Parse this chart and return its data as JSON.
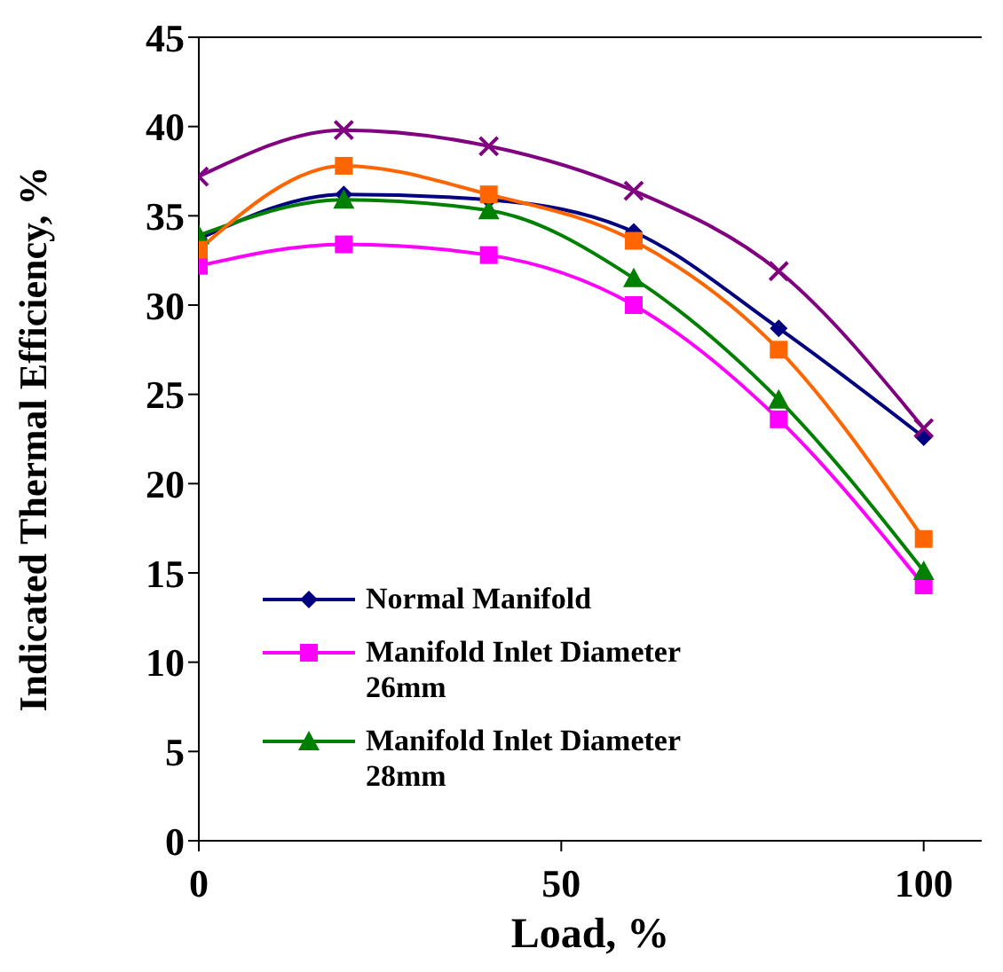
{
  "chart_data": {
    "type": "line",
    "xlabel": "Load, %",
    "ylabel": "Indicated Thermal Efficiency, %",
    "x": [
      0,
      20,
      40,
      60,
      80,
      100
    ],
    "xlim": [
      0,
      108
    ],
    "xticks": [
      0,
      50,
      100
    ],
    "ylim": [
      0,
      45
    ],
    "yticks": [
      0,
      5,
      10,
      15,
      20,
      25,
      30,
      35,
      40,
      45
    ],
    "grid": false,
    "legend": "bottom left",
    "line_style": "solid",
    "series": [
      {
        "name": "Normal Manifold",
        "color": "#000080",
        "marker": "diamond",
        "values": [
          33.7,
          36.2,
          35.9,
          34.1,
          28.7,
          22.6
        ]
      },
      {
        "name": "Manifold Inlet Diameter 26mm",
        "color": "#ff00ff",
        "marker": "square",
        "values": [
          32.2,
          33.4,
          32.8,
          30.0,
          23.6,
          14.3
        ]
      },
      {
        "name": "Manifold Inlet Diameter 28mm",
        "color": "#008000",
        "marker": "triangle",
        "values": [
          33.9,
          35.9,
          35.3,
          31.5,
          24.7,
          15.1
        ]
      },
      {
        "color": "#ff6600",
        "marker": "square",
        "values": [
          33.1,
          37.8,
          36.2,
          33.6,
          27.5,
          16.9
        ]
      },
      {
        "color": "#800080",
        "marker": "cross",
        "values": [
          37.2,
          39.8,
          38.9,
          36.4,
          31.9,
          23.1
        ]
      }
    ]
  }
}
